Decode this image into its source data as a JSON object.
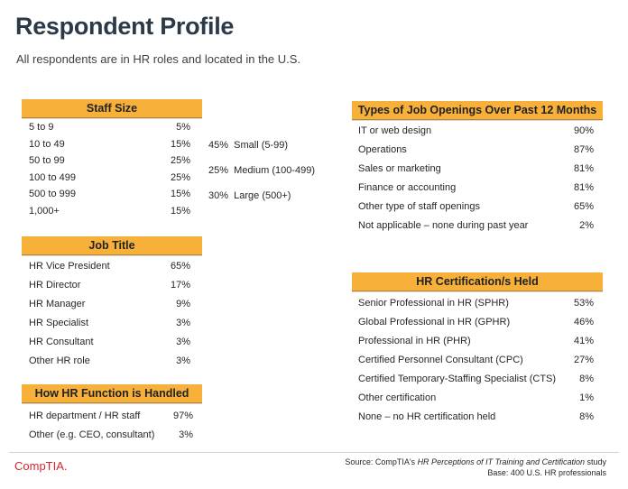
{
  "header": {
    "title": "Respondent Profile",
    "subtitle": "All respondents are in HR roles and located in the U.S."
  },
  "staff_size": {
    "heading": "Staff Size",
    "rows": [
      {
        "label": "5 to 9",
        "value": "5%"
      },
      {
        "label": "10 to 49",
        "value": "15%"
      },
      {
        "label": "50 to 99",
        "value": "25%"
      },
      {
        "label": "100 to 499",
        "value": "25%"
      },
      {
        "label": "500 to 999",
        "value": "15%"
      },
      {
        "label": "1,000+",
        "value": "15%"
      }
    ],
    "summary": [
      {
        "value": "45%",
        "label": "Small (5-99)"
      },
      {
        "value": "25%",
        "label": "Medium (100-499)"
      },
      {
        "value": "30%",
        "label": "Large (500+)"
      }
    ]
  },
  "job_title": {
    "heading": "Job Title",
    "rows": [
      {
        "label": "HR Vice President",
        "value": "65%"
      },
      {
        "label": "HR Director",
        "value": "17%"
      },
      {
        "label": "HR Manager",
        "value": "9%"
      },
      {
        "label": "HR Specialist",
        "value": "3%"
      },
      {
        "label": "HR Consultant",
        "value": "3%"
      },
      {
        "label": "Other HR role",
        "value": "3%"
      }
    ]
  },
  "hr_function": {
    "heading": "How HR Function is Handled",
    "rows": [
      {
        "label": "HR department / HR staff",
        "value": "97%"
      },
      {
        "label": "Other (e.g. CEO, consultant)",
        "value": "3%"
      }
    ]
  },
  "job_openings": {
    "heading": "Types of Job Openings Over Past 12 Months",
    "rows": [
      {
        "label": "IT or web design",
        "value": "90%"
      },
      {
        "label": "Operations",
        "value": "87%"
      },
      {
        "label": "Sales or marketing",
        "value": "81%"
      },
      {
        "label": "Finance or accounting",
        "value": "81%"
      },
      {
        "label": "Other type of staff openings",
        "value": "65%"
      },
      {
        "label": "Not applicable – none during past year",
        "value": "2%"
      }
    ]
  },
  "certifications": {
    "heading": "HR Certification/s Held",
    "rows": [
      {
        "label": "Senior Professional in HR (SPHR)",
        "value": "53%"
      },
      {
        "label": "Global Professional in HR (GPHR)",
        "value": "46%"
      },
      {
        "label": "Professional in HR (PHR)",
        "value": "41%"
      },
      {
        "label": "Certified Personnel Consultant (CPC)",
        "value": "27%"
      },
      {
        "label": "Certified Temporary-Staffing Specialist (CTS)",
        "value": "8%"
      },
      {
        "label": "Other certification",
        "value": "1%"
      },
      {
        "label": "None – no HR certification held",
        "value": "8%"
      }
    ]
  },
  "footer": {
    "logo": "CompTIA.",
    "source_prefix": "Source: CompTIA's ",
    "source_title": "HR Perceptions of IT Training and Certification",
    "source_suffix": " study",
    "base": "Base: 400 U.S. HR professionals"
  }
}
